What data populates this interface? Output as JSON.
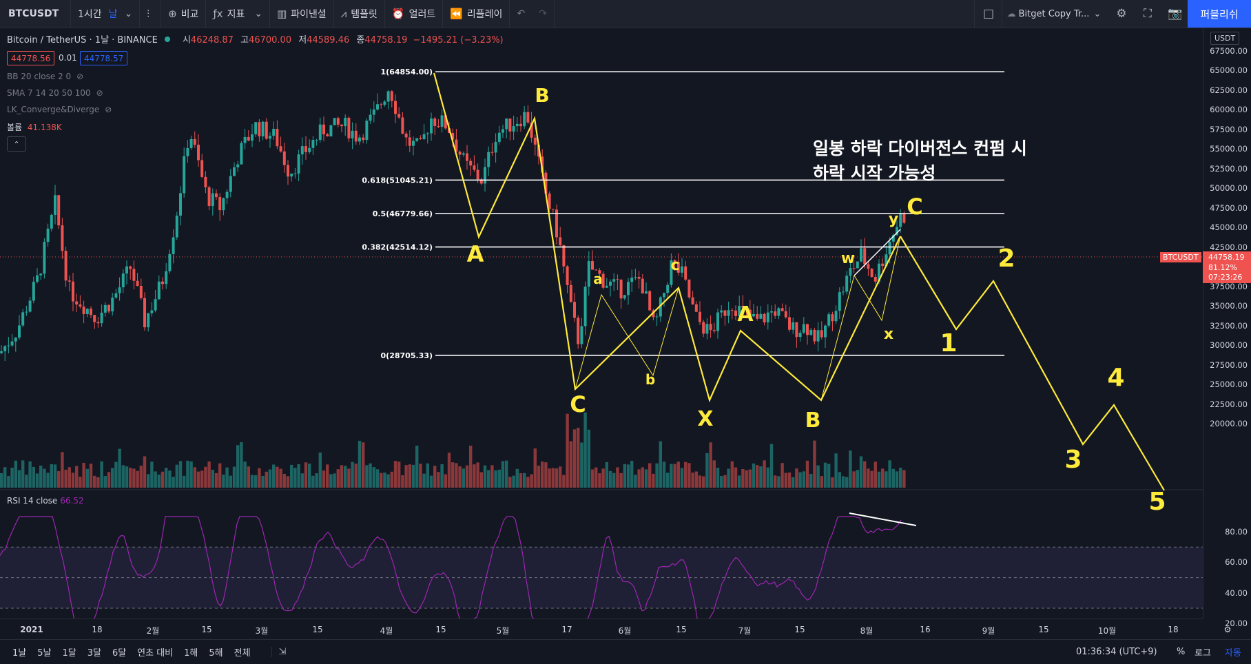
{
  "topbar": {
    "symbol": "BTCUSDT",
    "interval": "1시간",
    "interval_alt": "날",
    "compare": "비교",
    "indicators": "지표",
    "financials": "파이낸셜",
    "templates": "템플릿",
    "alert": "얼러트",
    "replay": "리플레이",
    "layout_name": "Bitget Copy Tr...",
    "publish": "퍼블리쉬"
  },
  "legend": {
    "title": "Bitcoin / TetherUS · 1날 · BINANCE",
    "o_label": "시",
    "o": "46248.87",
    "h_label": "고",
    "h": "46700.00",
    "l_label": "저",
    "l": "44589.46",
    "c_label": "종",
    "c": "44758.19",
    "change": "−1495.21 (−3.23%)",
    "bid": "44778.56",
    "spread": "0.01",
    "ask": "44778.57"
  },
  "indicators": [
    {
      "label": "BB 20 close 2 0"
    },
    {
      "label": "SMA 7 14 20 50 100"
    },
    {
      "label": "LK_Converge&Diverge"
    }
  ],
  "volume": {
    "label": "볼륨",
    "value": "41.138K"
  },
  "rsi": {
    "label": "RSI 14 close",
    "value": "66.52"
  },
  "price_axis": {
    "currency": "USDT",
    "labels": [
      "67500.00",
      "65000.00",
      "62500.00",
      "60000.00",
      "57500.00",
      "55000.00",
      "52500.00",
      "50000.00",
      "47500.00",
      "45000.00",
      "42500.00",
      "40000.00",
      "37500.00",
      "35000.00",
      "32500.00",
      "30000.00",
      "27500.00",
      "25000.00",
      "22500.00",
      "20000.00"
    ],
    "current_symbol": "BTCUSDT",
    "current_price": "44758.19",
    "current_pct": "81.12%",
    "countdown": "07:23:26"
  },
  "rsi_axis": [
    "80.00",
    "60.00",
    "40.00",
    "20.00"
  ],
  "time_axis": [
    "2021",
    "18",
    "2월",
    "15",
    "3월",
    "15",
    "4월",
    "15",
    "5월",
    "17",
    "6월",
    "15",
    "7월",
    "15",
    "8월",
    "16",
    "9월",
    "15",
    "10월",
    "18"
  ],
  "fib_levels": [
    {
      "label": "1(64854.00)",
      "price": 64854
    },
    {
      "label": "0.618(51045.21)",
      "price": 51045.21
    },
    {
      "label": "0.5(46779.66)",
      "price": 46779.66
    },
    {
      "label": "0.382(42514.12)",
      "price": 42514.12
    },
    {
      "label": "0(28705.33)",
      "price": 28705.33
    }
  ],
  "annotation": {
    "line1": "일봉 하락 다이버전스 컨펌 시",
    "line2": "하락 시작 가능성"
  },
  "wave_labels": [
    {
      "text": "A"
    },
    {
      "text": "B"
    },
    {
      "text": "C"
    },
    {
      "text": "a"
    },
    {
      "text": "b"
    },
    {
      "text": "c"
    },
    {
      "text": "X"
    },
    {
      "text": "A"
    },
    {
      "text": "B"
    },
    {
      "text": "w"
    },
    {
      "text": "x"
    },
    {
      "text": "y"
    },
    {
      "text": "C"
    },
    {
      "text": "1"
    },
    {
      "text": "2"
    },
    {
      "text": "3"
    },
    {
      "text": "4"
    },
    {
      "text": "5"
    }
  ],
  "bottombar": {
    "ranges": [
      "1날",
      "5날",
      "1달",
      "3달",
      "6달",
      "연초 대비",
      "1해",
      "5해",
      "전체"
    ],
    "time": "01:36:34 (UTC+9)",
    "percent": "%",
    "log": "로그",
    "auto": "자동"
  },
  "colors": {
    "up": "#26a69a",
    "down": "#ef5350",
    "wave": "#ffeb3b",
    "rsi": "#9c27b0",
    "bg": "#131722"
  }
}
